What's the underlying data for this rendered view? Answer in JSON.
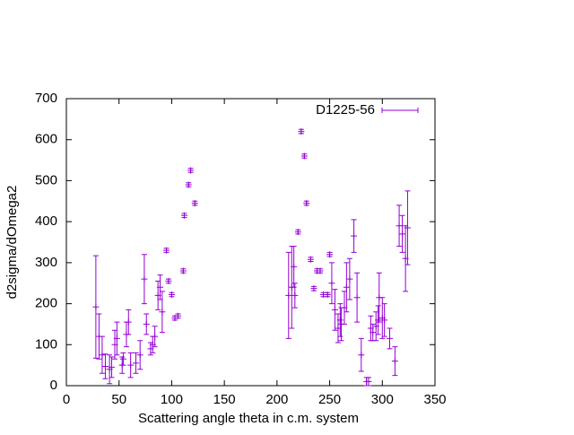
{
  "chart_data": {
    "type": "errorbar",
    "xlabel": "Scattering angle theta in c.m. system",
    "ylabel": "d2sigma/dOmega2",
    "xlim": [
      0,
      350
    ],
    "xticks": [
      0,
      50,
      100,
      150,
      200,
      250,
      300,
      350
    ],
    "ylim": [
      0,
      700
    ],
    "yticks": [
      0,
      100,
      200,
      300,
      400,
      500,
      600,
      700
    ],
    "legend": "top-right",
    "x": [
      28,
      31,
      34,
      37,
      41,
      43,
      46,
      48,
      53,
      54,
      57,
      59,
      61,
      66,
      70,
      74,
      76,
      80,
      82,
      84,
      87,
      89,
      91,
      95,
      97,
      100,
      103,
      106,
      111,
      112,
      116,
      118,
      122,
      211,
      214,
      216,
      217,
      220,
      223,
      226,
      228,
      232,
      235,
      238,
      241,
      244,
      248,
      250,
      252,
      255,
      258,
      260,
      261,
      264,
      266,
      269,
      273,
      276,
      280,
      285,
      287,
      289,
      291,
      294,
      296,
      297,
      300,
      302,
      307,
      312,
      316,
      319,
      322,
      324
    ],
    "series": [
      {
        "name": "D1225-56",
        "color": "#9400d3",
        "values": [
          192,
          120,
          75,
          47,
          40,
          45,
          100,
          115,
          50,
          65,
          125,
          155,
          50,
          55,
          75,
          260,
          150,
          90,
          100,
          120,
          220,
          240,
          180,
          330,
          255,
          222,
          165,
          170,
          280,
          415,
          490,
          525,
          445,
          220,
          240,
          290,
          220,
          375,
          620,
          560,
          445,
          308,
          237,
          280,
          280,
          222,
          222,
          320,
          250,
          185,
          140,
          160,
          150,
          190,
          240,
          260,
          365,
          215,
          75,
          10,
          10,
          140,
          130,
          145,
          160,
          215,
          165,
          160,
          115,
          60,
          390,
          370,
          310,
          385
        ],
        "errors": [
          125,
          55,
          45,
          30,
          35,
          25,
          35,
          40,
          20,
          15,
          30,
          30,
          30,
          25,
          35,
          60,
          25,
          15,
          20,
          25,
          35,
          30,
          50,
          5,
          5,
          5,
          5,
          5,
          5,
          5,
          5,
          5,
          5,
          105,
          100,
          50,
          30,
          5,
          5,
          5,
          5,
          5,
          5,
          5,
          5,
          5,
          5,
          5,
          50,
          50,
          35,
          40,
          40,
          40,
          60,
          50,
          40,
          60,
          40,
          10,
          10,
          30,
          20,
          35,
          35,
          60,
          50,
          40,
          25,
          35,
          50,
          45,
          80,
          90
        ]
      }
    ]
  }
}
